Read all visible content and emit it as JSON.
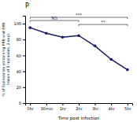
{
  "chart_data": {
    "type": "line",
    "title": "P",
    "x_label": "Time post infection",
    "y_label": "% of Sporozoites containing PRB and ARB\n(mean of 5 replicates, 2 exp)",
    "categories": [
      "0hr",
      "30min",
      "1hr",
      "2hr",
      "3hr",
      "4hr",
      "5hr"
    ],
    "values": [
      95,
      88,
      83,
      85,
      72,
      55,
      42
    ],
    "color": "#1a1a6e",
    "marker": "circle",
    "ylim": [
      0,
      110
    ],
    "yticks": [
      0,
      20,
      40,
      60,
      80,
      100
    ],
    "grid": false,
    "annotations": [
      {
        "text": "NS",
        "x1": "0hr",
        "x2": "2hr",
        "y": 104
      },
      {
        "text": "**",
        "x1": "2hr",
        "x2": "5hr",
        "y": 99
      },
      {
        "text": "***",
        "x1": "0hr",
        "x2": "5hr",
        "y": 108
      }
    ]
  }
}
